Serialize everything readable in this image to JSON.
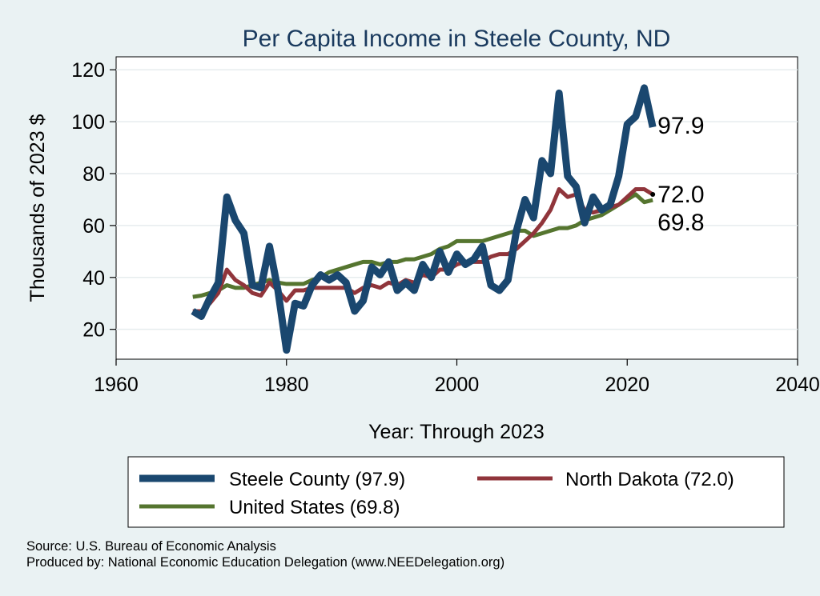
{
  "chart_data": {
    "type": "line",
    "title": "Per Capita Income in Steele County, ND",
    "xlabel": "Year: Through 2023",
    "ylabel": "Thousands of 2023 $",
    "xlim": [
      1960,
      2040
    ],
    "ylim": [
      8.5,
      125
    ],
    "xticks": [
      1960,
      1980,
      2000,
      2020,
      2040
    ],
    "yticks": [
      20,
      40,
      60,
      80,
      100,
      120
    ],
    "grid": true,
    "x": [
      1969,
      1970,
      1971,
      1972,
      1973,
      1974,
      1975,
      1976,
      1977,
      1978,
      1979,
      1980,
      1981,
      1982,
      1983,
      1984,
      1985,
      1986,
      1987,
      1988,
      1989,
      1990,
      1991,
      1992,
      1993,
      1994,
      1995,
      1996,
      1997,
      1998,
      1999,
      2000,
      2001,
      2002,
      2003,
      2004,
      2005,
      2006,
      2007,
      2008,
      2009,
      2010,
      2011,
      2012,
      2013,
      2014,
      2015,
      2016,
      2017,
      2018,
      2019,
      2020,
      2021,
      2022,
      2023
    ],
    "series": [
      {
        "name": "Steele County",
        "color": "#1a476f",
        "end_label": "97.9",
        "values": [
          27,
          25,
          32,
          38,
          71,
          62,
          57,
          37,
          36,
          52,
          35,
          12,
          30,
          29,
          37,
          41,
          39,
          41,
          38,
          27,
          31,
          44,
          41,
          46,
          35,
          38,
          35,
          45,
          40,
          50,
          42,
          49,
          45,
          47,
          52,
          37,
          35,
          39,
          58,
          70,
          63,
          85,
          80,
          111,
          79,
          75,
          61,
          71,
          66,
          68,
          79,
          99,
          102,
          113,
          97.9
        ]
      },
      {
        "name": "North Dakota",
        "color": "#90353b",
        "end_label": "72.0",
        "values": [
          27,
          27,
          30,
          34,
          43,
          39,
          37,
          34,
          33,
          38,
          35,
          31,
          35,
          35,
          36,
          36,
          36,
          36,
          36,
          34,
          36,
          37,
          36,
          38,
          37,
          39,
          38,
          41,
          40,
          43,
          43,
          45,
          46,
          46,
          46,
          48,
          49,
          49,
          51,
          54,
          57,
          61,
          66,
          74,
          71,
          72,
          66,
          65,
          66,
          67,
          68,
          71,
          74,
          74,
          72.0
        ]
      },
      {
        "name": "United States",
        "color": "#55752f",
        "end_label": "69.8",
        "values": [
          32.5,
          33,
          34,
          35,
          37,
          36,
          36,
          37,
          38,
          39,
          38,
          37.5,
          37.5,
          37.5,
          39,
          40,
          42,
          43,
          44,
          45,
          46,
          46,
          45,
          46,
          46,
          47,
          47,
          48,
          49,
          51,
          52,
          54,
          54,
          54,
          54,
          55,
          56,
          57,
          58,
          58,
          56,
          57,
          58,
          59,
          59,
          60,
          62,
          63,
          64,
          66,
          68,
          70,
          72,
          69,
          69.8
        ]
      }
    ],
    "legend": {
      "placement": "bottom",
      "entries": [
        "Steele County (97.9)",
        "North Dakota (72.0)",
        "United States (69.8)"
      ]
    }
  },
  "footer": {
    "source": "Source: U.S. Bureau of Economic Analysis",
    "produced": "Produced by: National Economic Education Delegation (www.NEEDelegation.org)"
  }
}
